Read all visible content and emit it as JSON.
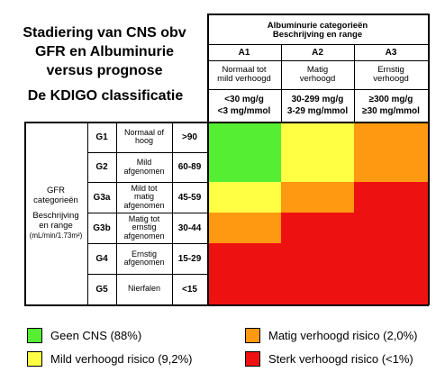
{
  "title_lines": [
    "Stadiering van CNS obv",
    "GFR en Albuminurie",
    "versus prognose"
  ],
  "subtitle": "De KDIGO classificatie",
  "albuminuria_header": [
    "Albuminurie categorieën",
    "Beschrijving en range"
  ],
  "albuminuria_columns": [
    {
      "code": "A1",
      "desc": [
        "Normaal tot",
        "mild verhoogd"
      ],
      "range": [
        "<30 mg/g",
        "<3 mg/mmol"
      ]
    },
    {
      "code": "A2",
      "desc": [
        "Matig",
        "verhoogd"
      ],
      "range": [
        "30-299 mg/g",
        "3-29 mg/mmol"
      ]
    },
    {
      "code": "A3",
      "desc": [
        "Ernstig",
        "verhoogd"
      ],
      "range": [
        "≥300 mg/g",
        "≥30 mg/mmol"
      ]
    }
  ],
  "gfr_label": [
    "GFR",
    "categorieën",
    "",
    "Beschrijving",
    "en range",
    "(mL/min/1.73m²)"
  ],
  "gfr_rows": [
    {
      "code": "G1",
      "desc": [
        "Normaal of",
        "hoog"
      ],
      "range": ">90",
      "risk": [
        "green",
        "yellow",
        "orange"
      ]
    },
    {
      "code": "G2",
      "desc": [
        "Mild",
        "afgenomen"
      ],
      "range": "60-89",
      "risk": [
        "green",
        "yellow",
        "orange"
      ]
    },
    {
      "code": "G3a",
      "desc": [
        "Mild tot",
        "matig",
        "afgenomen"
      ],
      "range": "45-59",
      "risk": [
        "yellow",
        "orange",
        "red"
      ]
    },
    {
      "code": "G3b",
      "desc": [
        "Matig tot",
        "ernstig",
        "afgenomen"
      ],
      "range": "30-44",
      "risk": [
        "orange",
        "red",
        "red"
      ]
    },
    {
      "code": "G4",
      "desc": [
        "Ernstig",
        "afgenomen"
      ],
      "range": "15-29",
      "risk": [
        "red",
        "red",
        "red"
      ]
    },
    {
      "code": "G5",
      "desc": [
        "Nierfalen"
      ],
      "range": "<15",
      "risk": [
        "red",
        "red",
        "red"
      ]
    }
  ],
  "risk_colors": {
    "green": "#55ee33",
    "yellow": "#ffff44",
    "orange": "#ff9911",
    "red": "#ee1111"
  },
  "legend": [
    {
      "color": "green",
      "label": "Geen CNS (88%)"
    },
    {
      "color": "yellow",
      "label": "Mild verhoogd risico (9,2%)"
    },
    {
      "color": "orange",
      "label": "Matig verhoogd risico (2,0%)"
    },
    {
      "color": "red",
      "label": "Sterk verhoogd risico (<1%)"
    }
  ]
}
